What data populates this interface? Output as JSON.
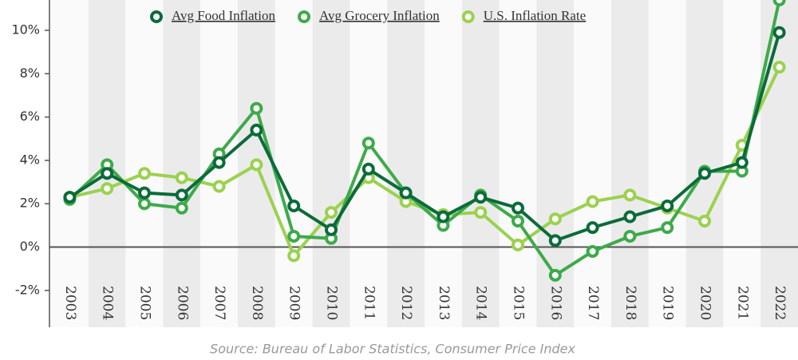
{
  "chart_data": {
    "type": "line",
    "source": "Source: Bureau of Labor Statistics, Consumer Price Index",
    "categories": [
      "2003",
      "2004",
      "2005",
      "2006",
      "2007",
      "2008",
      "2009",
      "2010",
      "2011",
      "2012",
      "2013",
      "2014",
      "2015",
      "2016",
      "2017",
      "2018",
      "2019",
      "2020",
      "2021",
      "2022"
    ],
    "series": [
      {
        "name": "Avg Food Inflation",
        "color": "#0b6b3a",
        "values": [
          2.3,
          3.4,
          2.5,
          2.4,
          3.9,
          5.4,
          1.9,
          0.8,
          3.6,
          2.5,
          1.4,
          2.3,
          1.8,
          0.3,
          0.9,
          1.4,
          1.9,
          3.4,
          3.9,
          9.9
        ]
      },
      {
        "name": "Avg Grocery Inflation",
        "color": "#3daa4a",
        "values": [
          2.2,
          3.8,
          2.0,
          1.8,
          4.3,
          6.4,
          0.5,
          0.4,
          4.8,
          2.5,
          1.0,
          2.4,
          1.2,
          -1.3,
          -0.2,
          0.5,
          0.9,
          3.5,
          3.5,
          11.4
        ]
      },
      {
        "name": "U.S. Inflation Rate",
        "color": "#9bd14f",
        "values": [
          2.3,
          2.7,
          3.4,
          3.2,
          2.8,
          3.8,
          -0.4,
          1.6,
          3.2,
          2.1,
          1.5,
          1.6,
          0.1,
          1.3,
          2.1,
          2.4,
          1.8,
          1.2,
          4.7,
          8.3
        ]
      }
    ],
    "ylim": [
      -3.7,
      11.4
    ],
    "yticks": [
      {
        "value": -2,
        "label": "-2%"
      },
      {
        "value": 0,
        "label": "0%"
      },
      {
        "value": 2,
        "label": "2%"
      },
      {
        "value": 4,
        "label": "4%"
      },
      {
        "value": 6,
        "label": "6%"
      },
      {
        "value": 8,
        "label": "8%"
      },
      {
        "value": 10,
        "label": "10%"
      }
    ]
  }
}
